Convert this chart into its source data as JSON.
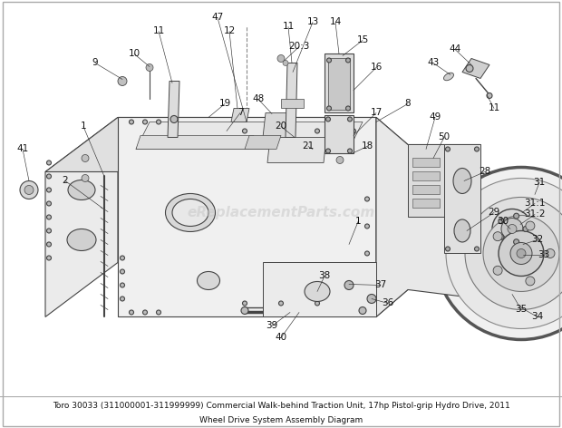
{
  "bg_color": "#ffffff",
  "line_color": "#444444",
  "fill_light": "#f2f2f2",
  "fill_mid": "#e0e0e0",
  "fill_dark": "#cccccc",
  "watermark": "eReplacementParts.com",
  "watermark_color": "#c8c8c8",
  "title_line1": "Toro 30033 (311000001-311999999) Commercial Walk-behind Traction Unit, 17hp Pistol-grip Hydro Drive, 2011",
  "title_line2": "Wheel Drive System Assembly Diagram",
  "title_fontsize": 6.5,
  "label_fontsize": 7.5
}
